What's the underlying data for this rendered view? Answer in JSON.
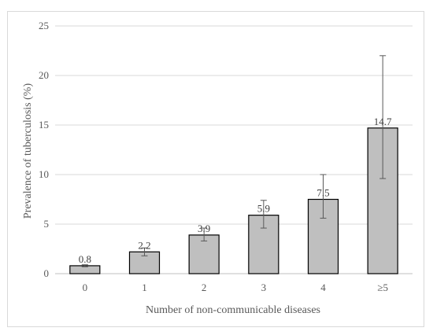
{
  "chart_data": {
    "type": "bar",
    "xlabel": "Number of non-communicable diseases",
    "ylabel": "Prevalence of tuberculosis (%)",
    "categories": [
      "0",
      "1",
      "2",
      "3",
      "4",
      "≥5"
    ],
    "values": [
      0.8,
      2.2,
      3.9,
      5.9,
      7.5,
      14.7
    ],
    "data_labels": [
      "0.8",
      "2.2",
      "3.9",
      "5.9",
      "7.5",
      "14.7"
    ],
    "error_low": [
      0.7,
      1.8,
      3.3,
      4.6,
      5.6,
      9.6
    ],
    "error_high": [
      0.9,
      2.6,
      4.6,
      7.4,
      10.0,
      22.0
    ],
    "ylim": [
      0,
      25
    ],
    "yticks": [
      "0",
      "5",
      "10",
      "15",
      "20",
      "25"
    ],
    "grid": true,
    "legend": "none",
    "colors": {
      "bar_fill": "#bfbfbf",
      "bar_stroke": "#000000",
      "grid": "#d9d9d9",
      "error_bar": "#595959"
    }
  }
}
